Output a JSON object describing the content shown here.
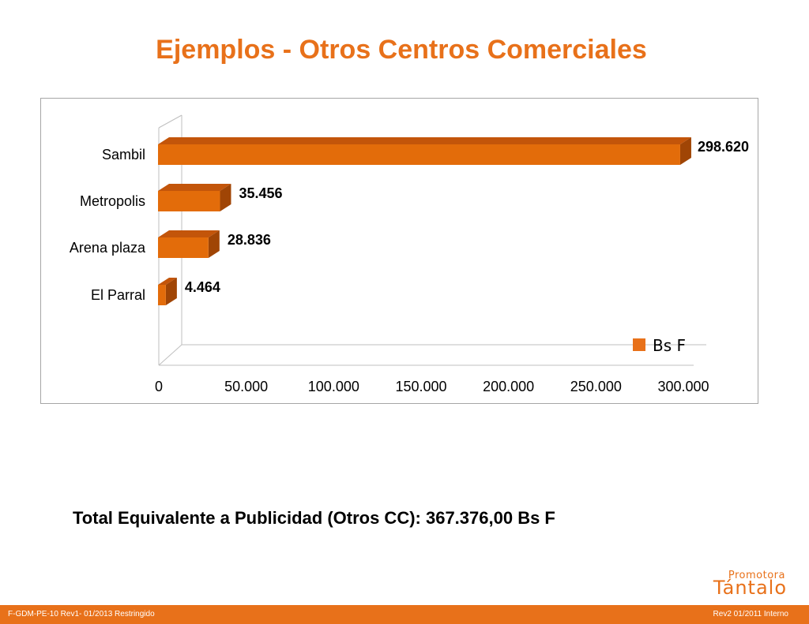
{
  "title": "Ejemplos - Otros Centros Comerciales",
  "chart_data": {
    "type": "bar",
    "orientation": "horizontal",
    "categories": [
      "Sambil",
      "Metropolis",
      "Arena plaza",
      "El Parral"
    ],
    "series": [
      {
        "name": "Bs F",
        "values": [
          298620,
          35456,
          28836,
          4464
        ]
      }
    ],
    "data_labels": [
      "298.620",
      "35.456",
      "28.836",
      "4.464"
    ],
    "x_ticks": [
      "0",
      "50.000",
      "100.000",
      "150.000",
      "200.000",
      "250.000",
      "300.000"
    ],
    "xlim": [
      0,
      300000
    ],
    "legend_position": "bottom-right",
    "grid": false,
    "colors": {
      "bar_front": "#e36c0a",
      "bar_top": "#c3550a",
      "bar_side": "#a04505",
      "legend": "#e8711a"
    }
  },
  "total": "Total Equivalente a Publicidad (Otros CC): 367.376,00 Bs F",
  "logo": {
    "top": "Promotora",
    "bottom": "Tántalo"
  },
  "footer": {
    "left": "F-GDM-PE-10  Rev1-  01/2013  Restringido",
    "right": "Rev2  01/2011  Interno"
  }
}
